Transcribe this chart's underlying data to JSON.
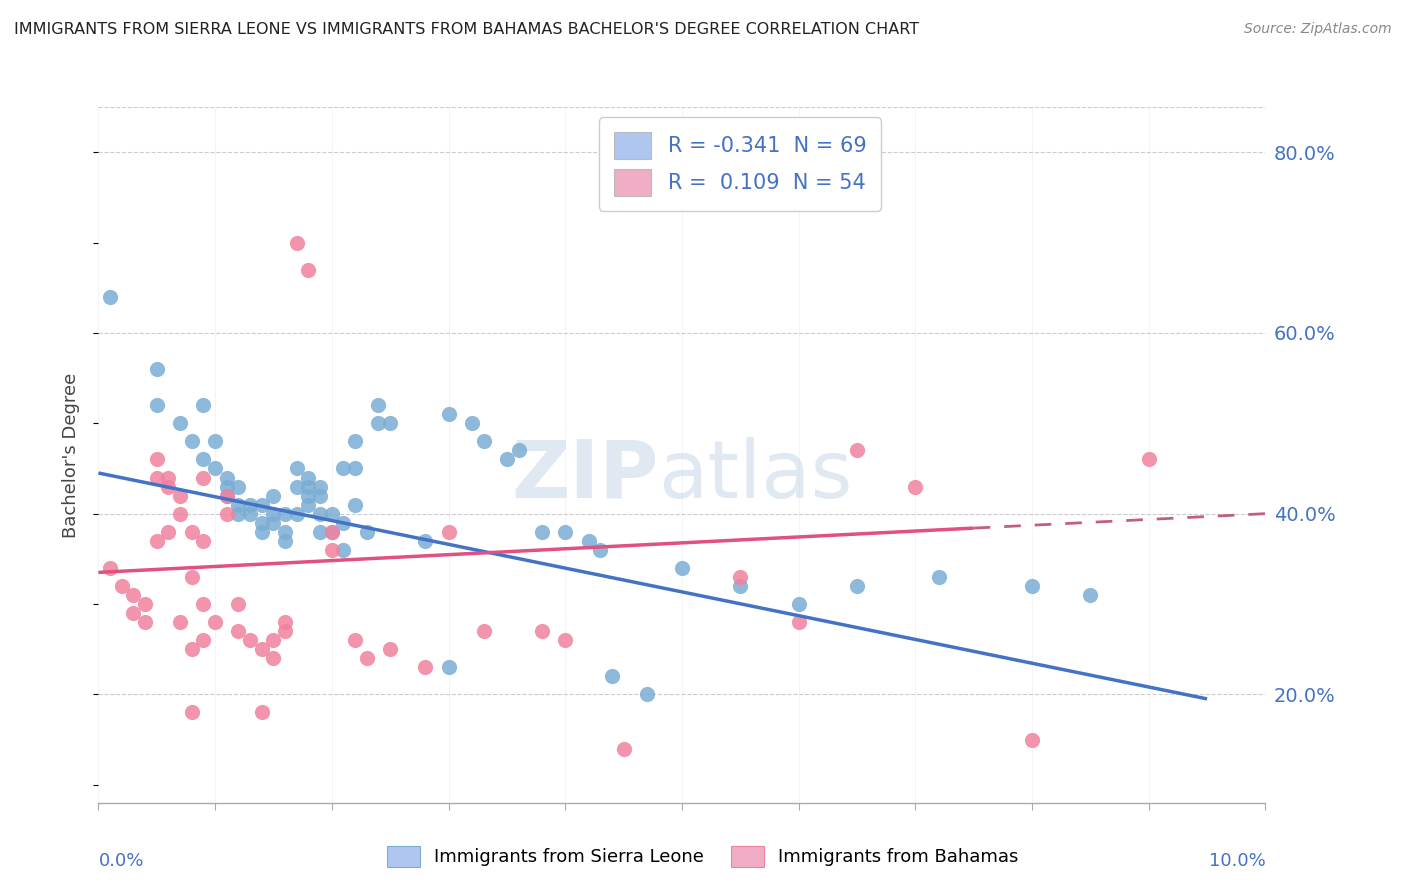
{
  "title": "IMMIGRANTS FROM SIERRA LEONE VS IMMIGRANTS FROM BAHAMAS BACHELOR'S DEGREE CORRELATION CHART",
  "source": "Source: ZipAtlas.com",
  "ylabel": "Bachelor's Degree",
  "ylabel_right_ticks": [
    "80.0%",
    "60.0%",
    "40.0%",
    "20.0%"
  ],
  "ylabel_right_values": [
    0.8,
    0.6,
    0.4,
    0.2
  ],
  "legend_entries": [
    {
      "label": "R = -0.341  N = 69",
      "color": "#aec6f0"
    },
    {
      "label": "R =  0.109  N = 54",
      "color": "#f0aec6"
    }
  ],
  "sierra_leone_color": "#7aadd4",
  "bahamas_color": "#f0829e",
  "sierra_leone_scatter": [
    [
      0.001,
      0.64
    ],
    [
      0.005,
      0.56
    ],
    [
      0.005,
      0.52
    ],
    [
      0.007,
      0.5
    ],
    [
      0.008,
      0.48
    ],
    [
      0.009,
      0.52
    ],
    [
      0.009,
      0.46
    ],
    [
      0.01,
      0.48
    ],
    [
      0.01,
      0.45
    ],
    [
      0.011,
      0.42
    ],
    [
      0.011,
      0.44
    ],
    [
      0.011,
      0.43
    ],
    [
      0.012,
      0.43
    ],
    [
      0.012,
      0.41
    ],
    [
      0.012,
      0.4
    ],
    [
      0.013,
      0.41
    ],
    [
      0.013,
      0.4
    ],
    [
      0.014,
      0.41
    ],
    [
      0.014,
      0.39
    ],
    [
      0.014,
      0.38
    ],
    [
      0.015,
      0.42
    ],
    [
      0.015,
      0.4
    ],
    [
      0.015,
      0.39
    ],
    [
      0.016,
      0.4
    ],
    [
      0.016,
      0.38
    ],
    [
      0.016,
      0.37
    ],
    [
      0.017,
      0.45
    ],
    [
      0.017,
      0.43
    ],
    [
      0.017,
      0.4
    ],
    [
      0.018,
      0.44
    ],
    [
      0.018,
      0.43
    ],
    [
      0.018,
      0.42
    ],
    [
      0.018,
      0.41
    ],
    [
      0.019,
      0.43
    ],
    [
      0.019,
      0.42
    ],
    [
      0.019,
      0.4
    ],
    [
      0.019,
      0.38
    ],
    [
      0.02,
      0.4
    ],
    [
      0.02,
      0.38
    ],
    [
      0.021,
      0.45
    ],
    [
      0.021,
      0.39
    ],
    [
      0.021,
      0.36
    ],
    [
      0.022,
      0.48
    ],
    [
      0.022,
      0.45
    ],
    [
      0.022,
      0.41
    ],
    [
      0.023,
      0.38
    ],
    [
      0.024,
      0.52
    ],
    [
      0.024,
      0.5
    ],
    [
      0.025,
      0.5
    ],
    [
      0.028,
      0.37
    ],
    [
      0.03,
      0.51
    ],
    [
      0.03,
      0.23
    ],
    [
      0.032,
      0.5
    ],
    [
      0.033,
      0.48
    ],
    [
      0.035,
      0.46
    ],
    [
      0.036,
      0.47
    ],
    [
      0.038,
      0.38
    ],
    [
      0.04,
      0.38
    ],
    [
      0.042,
      0.37
    ],
    [
      0.043,
      0.36
    ],
    [
      0.044,
      0.22
    ],
    [
      0.047,
      0.2
    ],
    [
      0.05,
      0.34
    ],
    [
      0.055,
      0.32
    ],
    [
      0.06,
      0.3
    ],
    [
      0.065,
      0.32
    ],
    [
      0.072,
      0.33
    ],
    [
      0.08,
      0.32
    ],
    [
      0.085,
      0.31
    ]
  ],
  "bahamas_scatter": [
    [
      0.001,
      0.34
    ],
    [
      0.002,
      0.32
    ],
    [
      0.003,
      0.31
    ],
    [
      0.003,
      0.29
    ],
    [
      0.004,
      0.3
    ],
    [
      0.004,
      0.28
    ],
    [
      0.005,
      0.46
    ],
    [
      0.005,
      0.44
    ],
    [
      0.005,
      0.37
    ],
    [
      0.006,
      0.44
    ],
    [
      0.006,
      0.43
    ],
    [
      0.006,
      0.38
    ],
    [
      0.007,
      0.42
    ],
    [
      0.007,
      0.4
    ],
    [
      0.007,
      0.28
    ],
    [
      0.008,
      0.38
    ],
    [
      0.008,
      0.33
    ],
    [
      0.008,
      0.25
    ],
    [
      0.008,
      0.18
    ],
    [
      0.009,
      0.44
    ],
    [
      0.009,
      0.37
    ],
    [
      0.009,
      0.3
    ],
    [
      0.009,
      0.26
    ],
    [
      0.01,
      0.28
    ],
    [
      0.011,
      0.42
    ],
    [
      0.011,
      0.4
    ],
    [
      0.012,
      0.3
    ],
    [
      0.012,
      0.27
    ],
    [
      0.013,
      0.26
    ],
    [
      0.014,
      0.25
    ],
    [
      0.014,
      0.18
    ],
    [
      0.015,
      0.26
    ],
    [
      0.015,
      0.24
    ],
    [
      0.016,
      0.28
    ],
    [
      0.016,
      0.27
    ],
    [
      0.017,
      0.7
    ],
    [
      0.018,
      0.67
    ],
    [
      0.02,
      0.38
    ],
    [
      0.02,
      0.36
    ],
    [
      0.022,
      0.26
    ],
    [
      0.023,
      0.24
    ],
    [
      0.025,
      0.25
    ],
    [
      0.028,
      0.23
    ],
    [
      0.03,
      0.38
    ],
    [
      0.033,
      0.27
    ],
    [
      0.038,
      0.27
    ],
    [
      0.04,
      0.26
    ],
    [
      0.045,
      0.14
    ],
    [
      0.055,
      0.33
    ],
    [
      0.06,
      0.28
    ],
    [
      0.065,
      0.47
    ],
    [
      0.07,
      0.43
    ],
    [
      0.08,
      0.15
    ],
    [
      0.09,
      0.46
    ]
  ],
  "sierra_leone_line": {
    "x": [
      0.0,
      0.095
    ],
    "y": [
      0.445,
      0.195
    ]
  },
  "bahamas_line_solid": {
    "x": [
      0.0,
      0.075
    ],
    "y": [
      0.335,
      0.384
    ]
  },
  "bahamas_line_dashed": {
    "x": [
      0.075,
      0.1
    ],
    "y": [
      0.384,
      0.4
    ]
  },
  "xlim": [
    0.0,
    0.1
  ],
  "ylim": [
    0.08,
    0.85
  ],
  "watermark_zip": "ZIP",
  "watermark_atlas": "atlas",
  "background_color": "#ffffff",
  "grid_color": "#cccccc",
  "bottom_legend": [
    {
      "label": "Immigrants from Sierra Leone",
      "face": "#aec6f0",
      "edge": "#7aadd4"
    },
    {
      "label": "Immigrants from Bahamas",
      "face": "#f0aec6",
      "edge": "#f0829e"
    }
  ]
}
